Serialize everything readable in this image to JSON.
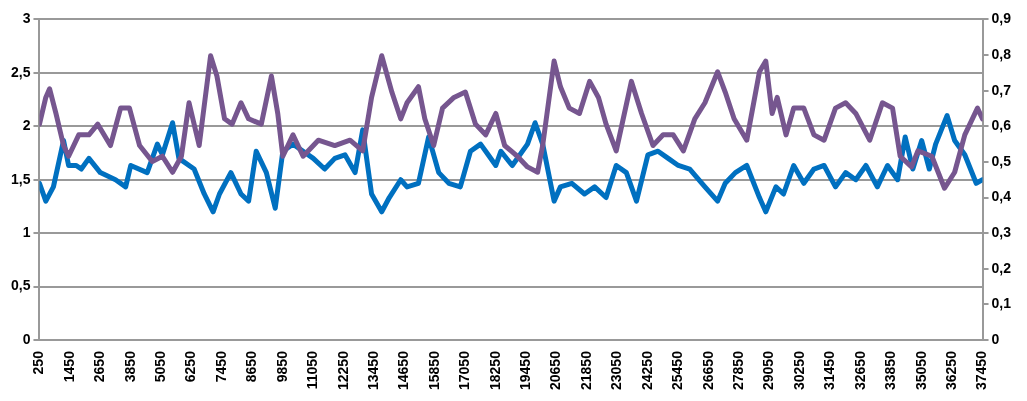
{
  "chart_data": {
    "type": "line",
    "xlim": [
      250,
      37450
    ],
    "xticks": [
      250,
      1450,
      2650,
      3850,
      5050,
      6250,
      7450,
      8650,
      9850,
      11050,
      12250,
      13450,
      14650,
      15850,
      17050,
      18250,
      19450,
      20650,
      21850,
      23050,
      24250,
      25450,
      26650,
      27850,
      29050,
      30250,
      31450,
      32650,
      33850,
      35050,
      36250,
      37450
    ],
    "ylim": [
      0,
      3
    ],
    "yticks": [
      0,
      {
        "value": 0.5,
        "label": "0,5"
      },
      1,
      {
        "value": 1.5,
        "label": "1,5"
      },
      2,
      {
        "value": 2.5,
        "label": "2,5"
      },
      3
    ],
    "y2lim": [
      0,
      0.9
    ],
    "y2ticks": [
      0,
      {
        "value": 0.1,
        "label": "0,1"
      },
      {
        "value": 0.2,
        "label": "0,2"
      },
      {
        "value": 0.3,
        "label": "0,3"
      },
      {
        "value": 0.4,
        "label": "0,4"
      },
      {
        "value": 0.5,
        "label": "0,5"
      },
      {
        "value": 0.6,
        "label": "0,6"
      },
      {
        "value": 0.7,
        "label": "0,7"
      },
      {
        "value": 0.8,
        "label": "0,8"
      },
      {
        "value": 0.9,
        "label": "0,9"
      }
    ],
    "grid": "y",
    "legend": false,
    "marker": "none",
    "line_style": "solid",
    "series": [
      {
        "color": "#76568f",
        "x": [
          250,
          500,
          650,
          900,
          1200,
          1400,
          1800,
          2200,
          2550,
          3050,
          3450,
          3800,
          4200,
          4700,
          5100,
          5500,
          5850,
          6150,
          6550,
          7000,
          7250,
          7550,
          7850,
          8200,
          8500,
          9000,
          9400,
          9650,
          9850,
          10250,
          10650,
          11250,
          11900,
          12500,
          13000,
          13350,
          13750,
          14150,
          14500,
          14750,
          15200,
          15450,
          15800,
          16150,
          16600,
          17050,
          17450,
          17850,
          18250,
          18600,
          19100,
          19500,
          19900,
          20100,
          20550,
          20800,
          21150,
          21550,
          21950,
          22300,
          22600,
          23000,
          23600,
          24000,
          24450,
          24850,
          25250,
          25650,
          26100,
          26500,
          27000,
          27300,
          27650,
          28150,
          28650,
          28900,
          29150,
          29350,
          29700,
          30000,
          30400,
          30800,
          31200,
          31650,
          32050,
          32450,
          33000,
          33500,
          33900,
          34200,
          34650,
          34900,
          35450,
          35950,
          36350,
          36750,
          37250,
          37450
        ],
        "values": [
          2.02,
          2.27,
          2.35,
          2.12,
          1.82,
          1.72,
          1.92,
          1.92,
          2.02,
          1.82,
          2.17,
          2.17,
          1.82,
          1.67,
          1.72,
          1.57,
          1.72,
          2.22,
          1.82,
          2.66,
          2.47,
          2.07,
          2.02,
          2.22,
          2.07,
          2.02,
          2.47,
          2.12,
          1.72,
          1.92,
          1.72,
          1.87,
          1.82,
          1.87,
          1.77,
          2.27,
          2.66,
          2.32,
          2.07,
          2.22,
          2.37,
          2.07,
          1.82,
          2.17,
          2.27,
          2.32,
          2.02,
          1.92,
          2.12,
          1.82,
          1.72,
          1.62,
          1.57,
          1.82,
          2.61,
          2.37,
          2.17,
          2.12,
          2.42,
          2.27,
          2.02,
          1.77,
          2.42,
          2.12,
          1.82,
          1.92,
          1.92,
          1.77,
          2.07,
          2.22,
          2.51,
          2.32,
          2.07,
          1.87,
          2.51,
          2.61,
          2.12,
          2.27,
          1.92,
          2.17,
          2.17,
          1.92,
          1.87,
          2.17,
          2.22,
          2.12,
          1.87,
          2.22,
          2.17,
          1.72,
          1.62,
          1.77,
          1.72,
          1.42,
          1.57,
          1.92,
          2.17,
          2.07
        ]
      },
      {
        "color": "#0070c0",
        "axis": "y2",
        "x": [
          250,
          500,
          800,
          1200,
          1400,
          1700,
          1900,
          2200,
          2650,
          3250,
          3650,
          3850,
          4500,
          4900,
          5100,
          5500,
          5750,
          6350,
          6750,
          7100,
          7350,
          7800,
          8200,
          8500,
          8800,
          9200,
          9550,
          9850,
          10250,
          10650,
          11050,
          11500,
          11900,
          12300,
          12700,
          13000,
          13350,
          13750,
          14050,
          14500,
          14750,
          15200,
          15600,
          16000,
          16400,
          16850,
          17250,
          17650,
          17950,
          18250,
          18450,
          18900,
          19500,
          19800,
          20100,
          20550,
          20800,
          21250,
          21750,
          22150,
          22600,
          23000,
          23400,
          23800,
          24250,
          24650,
          25050,
          25450,
          25900,
          26500,
          27000,
          27300,
          27700,
          28150,
          28650,
          28900,
          29300,
          29600,
          30000,
          30400,
          30800,
          31200,
          31650,
          32050,
          32450,
          32850,
          33300,
          33700,
          34100,
          34400,
          34700,
          35050,
          35350,
          35600,
          36050,
          36350,
          36750,
          37200,
          37450
        ],
        "values": [
          0.44,
          0.39,
          0.43,
          0.56,
          0.49,
          0.49,
          0.48,
          0.51,
          0.47,
          0.45,
          0.43,
          0.49,
          0.47,
          0.55,
          0.52,
          0.61,
          0.51,
          0.48,
          0.41,
          0.36,
          0.41,
          0.47,
          0.41,
          0.39,
          0.53,
          0.47,
          0.37,
          0.53,
          0.55,
          0.53,
          0.51,
          0.48,
          0.51,
          0.52,
          0.47,
          0.59,
          0.41,
          0.36,
          0.4,
          0.45,
          0.43,
          0.44,
          0.57,
          0.47,
          0.44,
          0.43,
          0.53,
          0.55,
          0.52,
          0.49,
          0.53,
          0.49,
          0.55,
          0.61,
          0.55,
          0.39,
          0.43,
          0.44,
          0.41,
          0.43,
          0.4,
          0.49,
          0.47,
          0.39,
          0.52,
          0.53,
          0.51,
          0.49,
          0.48,
          0.43,
          0.39,
          0.44,
          0.47,
          0.49,
          0.4,
          0.36,
          0.43,
          0.41,
          0.49,
          0.44,
          0.48,
          0.49,
          0.43,
          0.47,
          0.45,
          0.49,
          0.43,
          0.49,
          0.45,
          0.57,
          0.48,
          0.56,
          0.48,
          0.55,
          0.63,
          0.56,
          0.52,
          0.44,
          0.45
        ]
      }
    ]
  }
}
